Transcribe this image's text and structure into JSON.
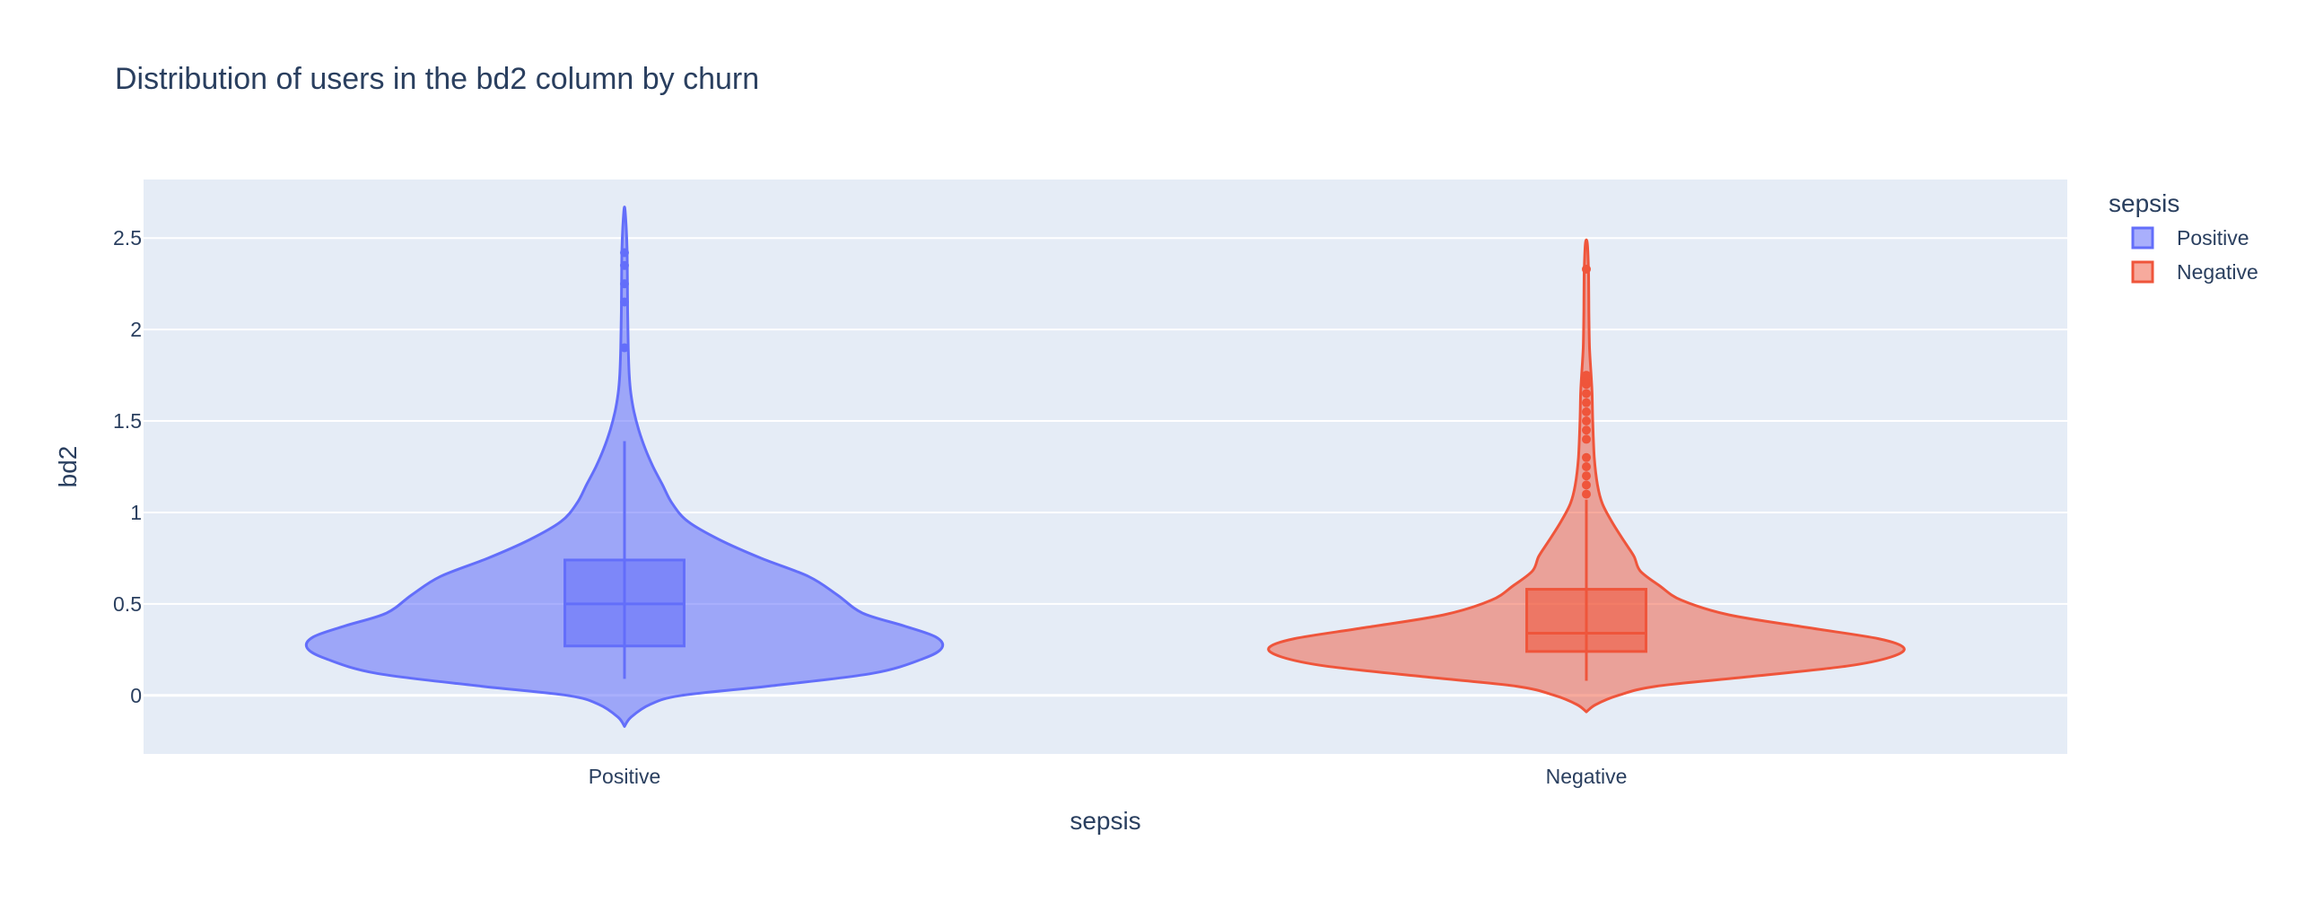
{
  "chart_data": {
    "type": "violin",
    "title": "Distribution of users in the bd2 column by churn",
    "xlabel": "sepsis",
    "ylabel": "bd2",
    "categories": [
      "Positive",
      "Negative"
    ],
    "ylim": [
      -0.32,
      2.82
    ],
    "yticks": [
      0,
      0.5,
      1,
      1.5,
      2,
      2.5
    ],
    "ytick_labels": [
      "0",
      "0.5",
      "1",
      "1.5",
      "2",
      "2.5"
    ],
    "grid": true,
    "background": "#E5ECF6",
    "legend": {
      "title": "sepsis",
      "placement": "top-right",
      "entries": [
        "Positive",
        "Negative"
      ]
    },
    "series": [
      {
        "name": "Positive",
        "color": "#636EFA",
        "fill": "rgba(99,110,250,0.55)",
        "box": {
          "min": 0.09,
          "q1": 0.27,
          "median": 0.5,
          "q3": 0.74,
          "upper_whisker": 1.39
        },
        "outliers": [
          1.9,
          2.15,
          2.25,
          2.35,
          2.42
        ],
        "range": [
          -0.17,
          2.67
        ],
        "density": [
          [
            -0.17,
            0.0
          ],
          [
            -0.12,
            0.02
          ],
          [
            -0.05,
            0.08
          ],
          [
            0.0,
            0.18
          ],
          [
            0.05,
            0.45
          ],
          [
            0.12,
            0.78
          ],
          [
            0.2,
            0.94
          ],
          [
            0.26,
            1.0
          ],
          [
            0.32,
            0.98
          ],
          [
            0.38,
            0.88
          ],
          [
            0.45,
            0.75
          ],
          [
            0.55,
            0.67
          ],
          [
            0.65,
            0.58
          ],
          [
            0.75,
            0.43
          ],
          [
            0.85,
            0.3
          ],
          [
            0.95,
            0.2
          ],
          [
            1.05,
            0.15
          ],
          [
            1.15,
            0.12
          ],
          [
            1.25,
            0.09
          ],
          [
            1.35,
            0.065
          ],
          [
            1.45,
            0.045
          ],
          [
            1.55,
            0.03
          ],
          [
            1.65,
            0.02
          ],
          [
            1.75,
            0.015
          ],
          [
            1.9,
            0.012
          ],
          [
            2.1,
            0.01
          ],
          [
            2.3,
            0.009
          ],
          [
            2.45,
            0.008
          ],
          [
            2.6,
            0.004
          ],
          [
            2.67,
            0.0
          ]
        ]
      },
      {
        "name": "Negative",
        "color": "#EF553B",
        "fill": "rgba(239,85,59,0.5)",
        "box": {
          "min": 0.08,
          "q1": 0.24,
          "median": 0.34,
          "q3": 0.58,
          "upper_whisker": 1.07
        },
        "outliers": [
          1.1,
          1.15,
          1.2,
          1.25,
          1.3,
          1.4,
          1.45,
          1.5,
          1.55,
          1.6,
          1.65,
          1.7,
          1.72,
          1.75,
          2.33
        ],
        "range": [
          -0.09,
          2.49
        ],
        "density": [
          [
            -0.09,
            0.0
          ],
          [
            -0.05,
            0.03
          ],
          [
            0.0,
            0.1
          ],
          [
            0.05,
            0.22
          ],
          [
            0.1,
            0.5
          ],
          [
            0.16,
            0.82
          ],
          [
            0.21,
            0.96
          ],
          [
            0.26,
            1.0
          ],
          [
            0.31,
            0.92
          ],
          [
            0.37,
            0.7
          ],
          [
            0.44,
            0.45
          ],
          [
            0.52,
            0.3
          ],
          [
            0.6,
            0.23
          ],
          [
            0.68,
            0.17
          ],
          [
            0.76,
            0.15
          ],
          [
            0.84,
            0.12
          ],
          [
            0.95,
            0.08
          ],
          [
            1.05,
            0.05
          ],
          [
            1.15,
            0.035
          ],
          [
            1.3,
            0.025
          ],
          [
            1.5,
            0.02
          ],
          [
            1.65,
            0.018
          ],
          [
            1.75,
            0.015
          ],
          [
            1.9,
            0.01
          ],
          [
            2.1,
            0.008
          ],
          [
            2.3,
            0.007
          ],
          [
            2.45,
            0.004
          ],
          [
            2.49,
            0.0
          ]
        ]
      }
    ]
  }
}
